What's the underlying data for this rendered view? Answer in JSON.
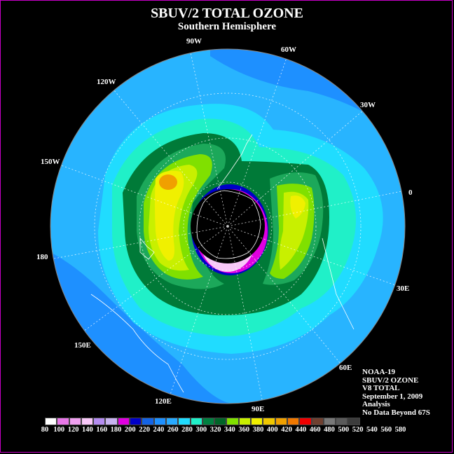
{
  "title": "SBUV/2 TOTAL OZONE",
  "subtitle": "Southern Hemisphere",
  "lon_labels": [
    "90W",
    "60W",
    "30W",
    "0",
    "30E",
    "60E",
    "90E",
    "120E",
    "150E",
    "180",
    "150W",
    "120W"
  ],
  "info": [
    "NOAA-19",
    "SBUV/2 OZONE",
    "V8 TOTAL",
    "September 1, 2009",
    "Analysis",
    "No Data Beyond 67S"
  ],
  "legend": {
    "ticks": [
      "80",
      "100",
      "120",
      "140",
      "160",
      "180",
      "200",
      "220",
      "240",
      "260",
      "280",
      "300",
      "320",
      "340",
      "360",
      "380",
      "400",
      "420",
      "440",
      "460",
      "480",
      "500",
      "520",
      "540",
      "560",
      "580"
    ],
    "colors": [
      "#ffffff",
      "#e878e8",
      "#f0a0f0",
      "#f8c8f8",
      "#b48cf0",
      "#c8b4f0",
      "#e000e0",
      "#0000c8",
      "#1464e6",
      "#1e90ff",
      "#28aaff",
      "#20dcff",
      "#20f0c8",
      "#008040",
      "#006428",
      "#80e000",
      "#c8f000",
      "#f0f000",
      "#f0c800",
      "#f0a000",
      "#f07800",
      "#f00000",
      "#704030",
      "#787878",
      "#5a5a5a",
      "#3c3c3c"
    ]
  },
  "ozone_bands_du": [
    80,
    100,
    120,
    140,
    160,
    180,
    200,
    220,
    240,
    260,
    280,
    300,
    320,
    340,
    360,
    380,
    400,
    420,
    440,
    460,
    480,
    500,
    520,
    540,
    560,
    580
  ],
  "map_colors": {
    "ocean_base": "#28b4ff",
    "outer_blue": "#1e90ff",
    "cyan": "#20dcff",
    "green_light": "#20f0c8",
    "green_dark": "#007a38",
    "green_mid": "#1ca85a",
    "yellow_green": "#c8f000",
    "yellow": "#f0f000",
    "orange": "#f0a000",
    "hole_magenta": "#e000e0",
    "hole_pink": "#f8c8f8",
    "hole_blue": "#0000c8",
    "no_data": "#000000"
  }
}
